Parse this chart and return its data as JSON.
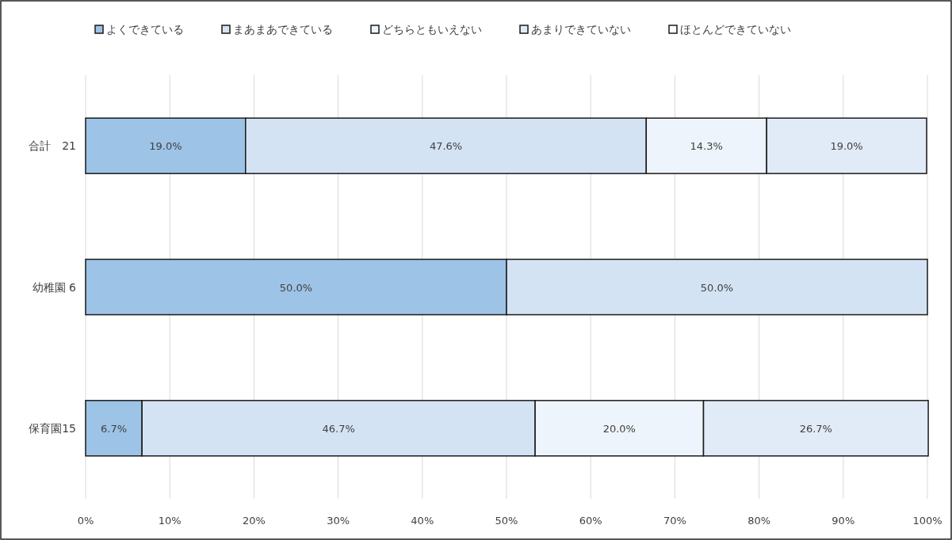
{
  "chart_data": {
    "type": "bar",
    "orientation": "horizontal",
    "stacked": true,
    "legend": "top",
    "grid": "x",
    "categories": [
      "合計　21",
      "幼稚園 6",
      "保育園15"
    ],
    "series": [
      {
        "name": "よくできている",
        "color": "#9dc3e6",
        "values": [
          19.0,
          50.0,
          6.7
        ],
        "value_labels": [
          "19.0%",
          "50.0%",
          "6.7%"
        ]
      },
      {
        "name": "まあまあできている",
        "color": "#d3e3f4",
        "values": [
          47.6,
          50.0,
          46.7
        ],
        "value_labels": [
          "47.6%",
          "50.0%",
          "46.7%"
        ]
      },
      {
        "name": "どちらともいえない",
        "color": "#eef4fb",
        "values": [
          14.3,
          null,
          20.0
        ],
        "value_labels": [
          "14.3%",
          null,
          "20.0%"
        ]
      },
      {
        "name": "あまりできていない",
        "color": "#e1ebf7",
        "values": [
          19.0,
          null,
          26.7
        ],
        "value_labels": [
          "19.0%",
          null,
          "26.7%"
        ]
      },
      {
        "name": "ほとんどできていない",
        "color": "#ffffff",
        "values": [
          null,
          null,
          null
        ]
      }
    ],
    "xlim": [
      0,
      100
    ],
    "xticks": [
      {
        "value": 0,
        "label": "0%"
      },
      {
        "value": 10,
        "label": "10%"
      },
      {
        "value": 20,
        "label": "20%"
      },
      {
        "value": 30,
        "label": "30%"
      },
      {
        "value": 40,
        "label": "40%"
      },
      {
        "value": 50,
        "label": "50%"
      },
      {
        "value": 60,
        "label": "60%"
      },
      {
        "value": 70,
        "label": "70%"
      },
      {
        "value": 80,
        "label": "80%"
      },
      {
        "value": 90,
        "label": "90%"
      },
      {
        "value": 100,
        "label": "100%"
      }
    ]
  }
}
